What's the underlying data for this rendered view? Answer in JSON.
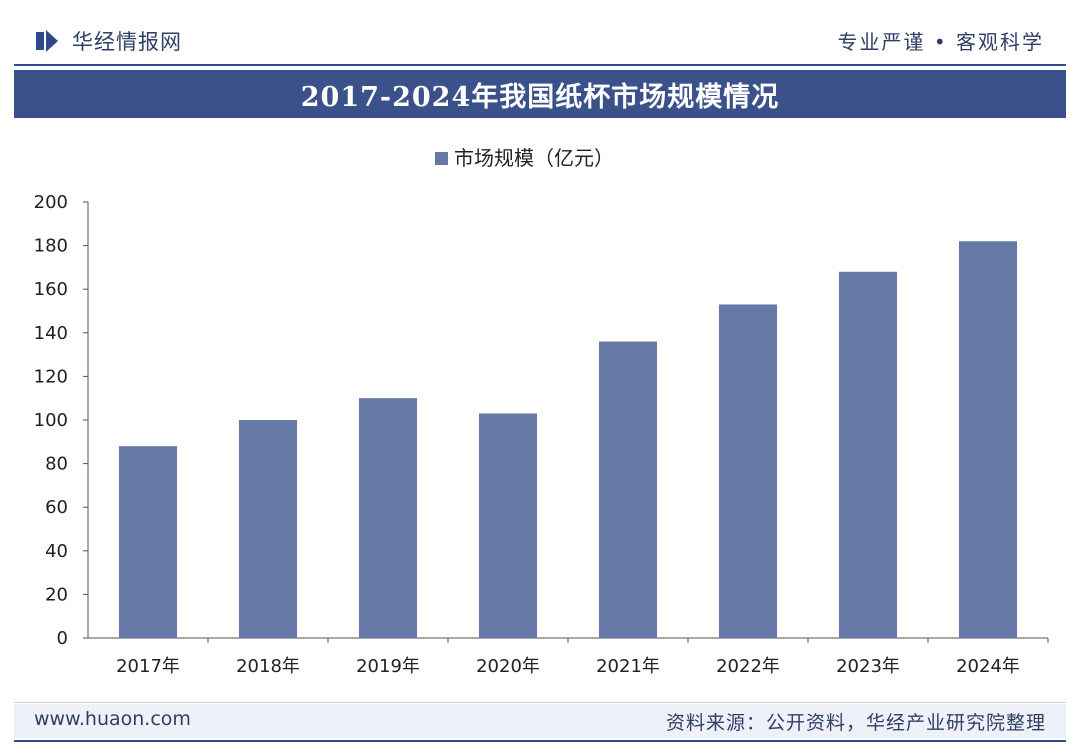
{
  "header": {
    "brand": "华经情报网",
    "tagline": "专业严谨 • 客观科学"
  },
  "banner": {
    "title": "2017-2024年我国纸杯市场规模情况"
  },
  "footer": {
    "website": "www.huaon.com",
    "source": "资料来源：公开资料，华经产业研究院整理"
  },
  "colors": {
    "bar": "#6578a6",
    "banner": "#3b5189",
    "accent": "#2f4a8a",
    "text": "#2f3f66"
  },
  "chart_data": {
    "type": "bar",
    "title": "2017-2024年我国纸杯市场规模情况",
    "categories": [
      "2017年",
      "2018年",
      "2019年",
      "2020年",
      "2021年",
      "2022年",
      "2023年",
      "2024年"
    ],
    "series": [
      {
        "name": "市场规模（亿元）",
        "values": [
          88,
          100,
          110,
          103,
          136,
          153,
          168,
          182
        ]
      }
    ],
    "xlabel": "",
    "ylabel": "",
    "ylim": [
      0,
      200
    ],
    "yticks": [
      0,
      20,
      40,
      60,
      80,
      100,
      120,
      140,
      160,
      180,
      200
    ],
    "grid": false,
    "legend": "top-center"
  }
}
